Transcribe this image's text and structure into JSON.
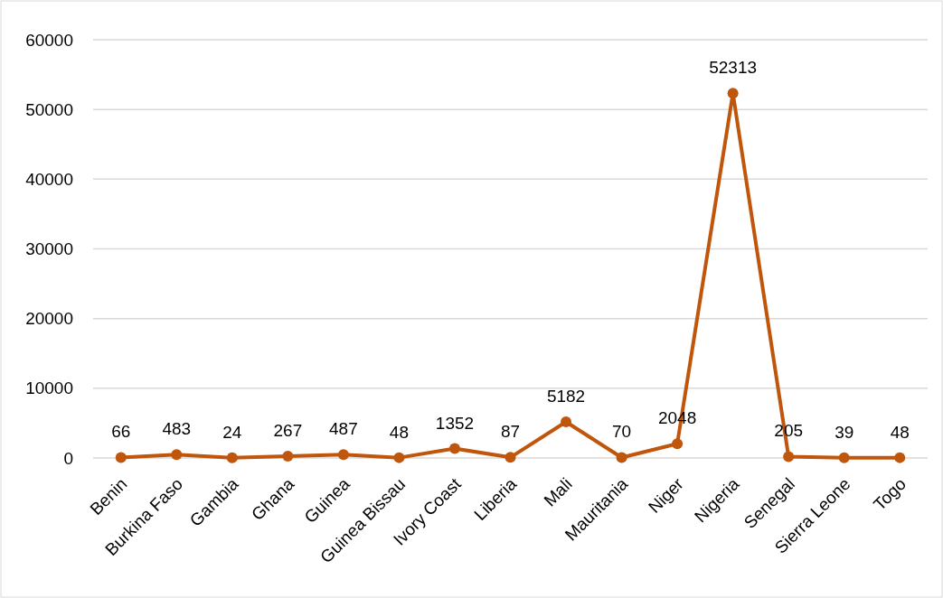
{
  "chart_data": {
    "type": "line",
    "categories": [
      "Benin",
      "Burkina Faso",
      "Gambia",
      "Ghana",
      "Guinea",
      "Guinea Bissau",
      "Ivory Coast",
      "Liberia",
      "Mali",
      "Mauritania",
      "Niger",
      "Nigeria",
      "Senegal",
      "Sierra Leone",
      "Togo"
    ],
    "series": [
      {
        "color": "#c0560c",
        "values": [
          66,
          483,
          24,
          267,
          487,
          48,
          1352,
          87,
          5182,
          70,
          2048,
          52313,
          205,
          39,
          48
        ]
      }
    ],
    "ylim": [
      0,
      60000
    ],
    "yticks": [
      0,
      10000,
      20000,
      30000,
      40000,
      50000,
      60000
    ],
    "grid": "y",
    "marker": "circle",
    "data_labels": true
  }
}
